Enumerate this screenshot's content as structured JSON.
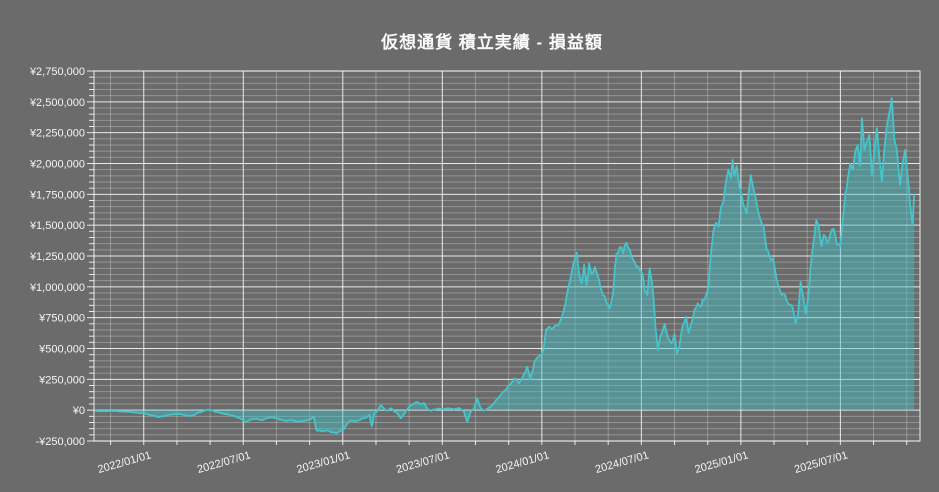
{
  "title": "仮想通貨 積立実績 - 損益額",
  "colors": {
    "background": "#6b6b6b",
    "line": "#45c4ca",
    "fill": "rgba(69,196,202,0.45)",
    "grid_minor": "rgba(255,255,255,0.27)",
    "grid_major": "rgba(255,255,255,0.85)",
    "text": "#f5f5f5"
  },
  "chart_data": {
    "type": "area",
    "title": "仮想通貨 積立実績 - 損益額",
    "xlabel": "",
    "ylabel": "",
    "legend": "none",
    "grid": "on",
    "x_axis": {
      "unit": "months_since_2021-10",
      "range": [
        0,
        49.8
      ],
      "minor_step": 2,
      "minor_start": 1,
      "ticks": [
        {
          "pos": 3,
          "label": "2022/01/01"
        },
        {
          "pos": 9,
          "label": "2022/07/01"
        },
        {
          "pos": 15,
          "label": "2023/01/01"
        },
        {
          "pos": 21,
          "label": "2023/07/01"
        },
        {
          "pos": 27,
          "label": "2024/01/01"
        },
        {
          "pos": 33,
          "label": "2024/07/01"
        },
        {
          "pos": 39,
          "label": "2025/01/01"
        },
        {
          "pos": 45,
          "label": "2025/07/01"
        }
      ]
    },
    "y_axis": {
      "range": [
        -250000,
        2750000
      ],
      "major_step": 250000,
      "minor_step": 50000,
      "ticks": [
        {
          "value": 2750000,
          "label": "¥2,750,000"
        },
        {
          "value": 2500000,
          "label": "¥2,500,000"
        },
        {
          "value": 2250000,
          "label": "¥2,250,000"
        },
        {
          "value": 2000000,
          "label": "¥2,000,000"
        },
        {
          "value": 1750000,
          "label": "¥1,750,000"
        },
        {
          "value": 1500000,
          "label": "¥1,500,000"
        },
        {
          "value": 1250000,
          "label": "¥1,250,000"
        },
        {
          "value": 1000000,
          "label": "¥1,000,000"
        },
        {
          "value": 750000,
          "label": "¥750,000"
        },
        {
          "value": 500000,
          "label": "¥500,000"
        },
        {
          "value": 250000,
          "label": "¥250,000"
        },
        {
          "value": 0,
          "label": "¥0"
        },
        {
          "value": -250000,
          "label": "-¥250,000"
        }
      ]
    },
    "noise": {
      "amplitude": 28000,
      "substep": 0.1
    },
    "series": [
      {
        "name": "損益額",
        "baseline": 0,
        "points": [
          [
            0,
            -5000
          ],
          [
            0.5,
            -8000
          ],
          [
            1,
            -7000
          ],
          [
            1.5,
            -10000
          ],
          [
            2,
            -12000
          ],
          [
            2.5,
            -18000
          ],
          [
            3,
            -25000
          ],
          [
            3.3,
            -35000
          ],
          [
            3.6,
            -45000
          ],
          [
            3.9,
            -58000
          ],
          [
            4.2,
            -48000
          ],
          [
            4.5,
            -38000
          ],
          [
            4.8,
            -32000
          ],
          [
            5.1,
            -30000
          ],
          [
            5.4,
            -38000
          ],
          [
            5.7,
            -47000
          ],
          [
            6,
            -40000
          ],
          [
            6.3,
            -20000
          ],
          [
            6.6,
            -5000
          ],
          [
            6.9,
            5000
          ],
          [
            7.2,
            -5000
          ],
          [
            7.5,
            -17000
          ],
          [
            7.8,
            -28000
          ],
          [
            8.1,
            -35000
          ],
          [
            8.4,
            -45000
          ],
          [
            8.7,
            -60000
          ],
          [
            9,
            -85000
          ],
          [
            9.2,
            -95000
          ],
          [
            9.5,
            -75000
          ],
          [
            9.8,
            -68000
          ],
          [
            10.1,
            -80000
          ],
          [
            10.4,
            -65000
          ],
          [
            10.7,
            -58000
          ],
          [
            11,
            -68000
          ],
          [
            11.3,
            -78000
          ],
          [
            11.6,
            -88000
          ],
          [
            11.9,
            -80000
          ],
          [
            12.2,
            -92000
          ],
          [
            12.5,
            -88000
          ],
          [
            12.8,
            -82000
          ],
          [
            13.1,
            -72000
          ],
          [
            13.25,
            -55000
          ],
          [
            13.4,
            -160000
          ],
          [
            13.7,
            -170000
          ],
          [
            14,
            -165000
          ],
          [
            14.3,
            -180000
          ],
          [
            14.6,
            -188000
          ],
          [
            14.8,
            -175000
          ],
          [
            15,
            -165000
          ],
          [
            15.2,
            -120000
          ],
          [
            15.4,
            -90000
          ],
          [
            15.6,
            -85000
          ],
          [
            15.8,
            -92000
          ],
          [
            16,
            -80000
          ],
          [
            16.2,
            -65000
          ],
          [
            16.4,
            -62000
          ],
          [
            16.6,
            -38000
          ],
          [
            16.75,
            -130000
          ],
          [
            16.9,
            -24000
          ],
          [
            17.1,
            -5000
          ],
          [
            17.3,
            43000
          ],
          [
            17.5,
            10000
          ],
          [
            17.7,
            -5000
          ],
          [
            17.9,
            15000
          ],
          [
            18.1,
            -10000
          ],
          [
            18.3,
            -25000
          ],
          [
            18.5,
            -67000
          ],
          [
            18.7,
            -30000
          ],
          [
            18.9,
            10000
          ],
          [
            19.1,
            40000
          ],
          [
            19.3,
            55000
          ],
          [
            19.5,
            65000
          ],
          [
            19.7,
            50000
          ],
          [
            19.9,
            58000
          ],
          [
            20.1,
            10000
          ],
          [
            20.3,
            -5000
          ],
          [
            20.5,
            5000
          ],
          [
            20.8,
            12000
          ],
          [
            21.1,
            8000
          ],
          [
            21.4,
            15000
          ],
          [
            21.7,
            5000
          ],
          [
            22,
            18000
          ],
          [
            22.3,
            -10000
          ],
          [
            22.5,
            -95000
          ],
          [
            22.7,
            -15000
          ],
          [
            22.9,
            10000
          ],
          [
            23.1,
            95000
          ],
          [
            23.3,
            20000
          ],
          [
            23.5,
            -5000
          ],
          [
            23.7,
            10000
          ],
          [
            23.9,
            28000
          ],
          [
            24.1,
            55000
          ],
          [
            24.3,
            90000
          ],
          [
            24.5,
            122000
          ],
          [
            24.8,
            160000
          ],
          [
            25.1,
            210000
          ],
          [
            25.35,
            257000
          ],
          [
            25.6,
            217000
          ],
          [
            25.95,
            298000
          ],
          [
            26.1,
            352000
          ],
          [
            26.3,
            250000
          ],
          [
            26.55,
            392000
          ],
          [
            26.9,
            446000
          ],
          [
            27.1,
            487000
          ],
          [
            27.25,
            650000
          ],
          [
            27.45,
            678000
          ],
          [
            27.6,
            660000
          ],
          [
            27.8,
            685000
          ],
          [
            28.1,
            720000
          ],
          [
            28.4,
            850000
          ],
          [
            28.6,
            1000000
          ],
          [
            28.8,
            1120000
          ],
          [
            29,
            1230000
          ],
          [
            29.1,
            1277000
          ],
          [
            29.25,
            1100000
          ],
          [
            29.4,
            1028000
          ],
          [
            29.55,
            1180000
          ],
          [
            29.7,
            1015000
          ],
          [
            29.85,
            1190000
          ],
          [
            30,
            1100000
          ],
          [
            30.2,
            1160000
          ],
          [
            30.45,
            1055000
          ],
          [
            30.7,
            930000
          ],
          [
            30.9,
            870000
          ],
          [
            31.1,
            825000
          ],
          [
            31.3,
            960000
          ],
          [
            31.5,
            1270000
          ],
          [
            31.7,
            1320000
          ],
          [
            31.9,
            1272000
          ],
          [
            32.1,
            1358000
          ],
          [
            32.3,
            1300000
          ],
          [
            32.5,
            1220000
          ],
          [
            32.7,
            1160000
          ],
          [
            32.9,
            1137000
          ],
          [
            33.05,
            1110000
          ],
          [
            33.2,
            975000
          ],
          [
            33.35,
            933000
          ],
          [
            33.5,
            1150000
          ],
          [
            33.65,
            1028000
          ],
          [
            33.85,
            680000
          ],
          [
            34,
            487000
          ],
          [
            34.2,
            620000
          ],
          [
            34.4,
            700000
          ],
          [
            34.6,
            590000
          ],
          [
            34.8,
            541000
          ],
          [
            35,
            620000
          ],
          [
            35.15,
            460000
          ],
          [
            35.3,
            520000
          ],
          [
            35.5,
            690000
          ],
          [
            35.7,
            758000
          ],
          [
            35.85,
            625000
          ],
          [
            36,
            700000
          ],
          [
            36.2,
            812000
          ],
          [
            36.4,
            866000
          ],
          [
            36.55,
            840000
          ],
          [
            36.7,
            900000
          ],
          [
            36.9,
            930000
          ],
          [
            37.05,
            1000000
          ],
          [
            37.2,
            1270000
          ],
          [
            37.35,
            1460000
          ],
          [
            37.5,
            1520000
          ],
          [
            37.65,
            1490000
          ],
          [
            37.8,
            1650000
          ],
          [
            37.95,
            1700000
          ],
          [
            38.1,
            1850000
          ],
          [
            38.25,
            1950000
          ],
          [
            38.4,
            1880000
          ],
          [
            38.5,
            2030000
          ],
          [
            38.6,
            1900000
          ],
          [
            38.75,
            1980000
          ],
          [
            38.9,
            1820000
          ],
          [
            39.05,
            1750000
          ],
          [
            39.2,
            1650000
          ],
          [
            39.35,
            1596000
          ],
          [
            39.5,
            1800000
          ],
          [
            39.6,
            1907000
          ],
          [
            39.75,
            1800000
          ],
          [
            39.95,
            1680000
          ],
          [
            40.15,
            1560000
          ],
          [
            40.35,
            1500000
          ],
          [
            40.55,
            1300000
          ],
          [
            40.75,
            1240000
          ],
          [
            40.95,
            1230000
          ],
          [
            41.15,
            1060000
          ],
          [
            41.35,
            975000
          ],
          [
            41.55,
            945000
          ],
          [
            41.75,
            890000
          ],
          [
            41.95,
            855000
          ],
          [
            42.15,
            820000
          ],
          [
            42.3,
            704000
          ],
          [
            42.45,
            780000
          ],
          [
            42.6,
            1040000
          ],
          [
            42.75,
            930000
          ],
          [
            42.9,
            785000
          ],
          [
            43.05,
            900000
          ],
          [
            43.2,
            1150000
          ],
          [
            43.4,
            1380000
          ],
          [
            43.55,
            1540000
          ],
          [
            43.7,
            1480000
          ],
          [
            43.85,
            1330000
          ],
          [
            44,
            1420000
          ],
          [
            44.2,
            1360000
          ],
          [
            44.4,
            1434000
          ],
          [
            44.6,
            1470000
          ],
          [
            44.8,
            1340000
          ],
          [
            45,
            1330000
          ],
          [
            45.15,
            1550000
          ],
          [
            45.3,
            1759000
          ],
          [
            45.45,
            1880000
          ],
          [
            45.6,
            2000000
          ],
          [
            45.75,
            1950000
          ],
          [
            45.9,
            2100000
          ],
          [
            46.05,
            2150000
          ],
          [
            46.2,
            1980000
          ],
          [
            46.3,
            2368000
          ],
          [
            46.45,
            2110000
          ],
          [
            46.6,
            2180000
          ],
          [
            46.75,
            2232000
          ],
          [
            46.9,
            1907000
          ],
          [
            47.05,
            2100000
          ],
          [
            47.2,
            2287000
          ],
          [
            47.35,
            2050000
          ],
          [
            47.5,
            1853000
          ],
          [
            47.65,
            2110000
          ],
          [
            47.8,
            2300000
          ],
          [
            48,
            2440000
          ],
          [
            48.1,
            2530000
          ],
          [
            48.25,
            2200000
          ],
          [
            48.4,
            2110000
          ],
          [
            48.6,
            1826000
          ],
          [
            48.75,
            2000000
          ],
          [
            48.9,
            2110000
          ],
          [
            49.05,
            1900000
          ],
          [
            49.2,
            1680000
          ],
          [
            49.35,
            1500000
          ],
          [
            49.45,
            1750000
          ]
        ]
      }
    ]
  }
}
